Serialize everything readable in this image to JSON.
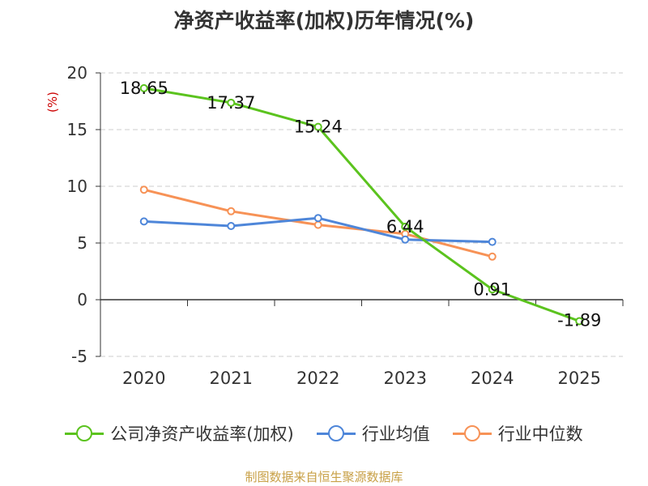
{
  "chart_data": {
    "type": "line",
    "title": "净资产收益率(加权)历年情况(%)",
    "ylabel": "(%)",
    "xlabel": "",
    "categories": [
      "2020",
      "2021",
      "2022",
      "2023",
      "2024",
      "2025"
    ],
    "ylim": [
      -5,
      20
    ],
    "yticks": [
      -5,
      0,
      5,
      10,
      15,
      20
    ],
    "grid": true,
    "legend_position": "bottom",
    "series": [
      {
        "name": "公司净资产收益率(加权)",
        "color": "#5bc31e",
        "values": [
          18.65,
          17.37,
          15.24,
          6.44,
          0.91,
          -1.89
        ],
        "labels": [
          "18.65",
          "17.37",
          "15.24",
          "6.44",
          "0.91",
          "-1.89"
        ]
      },
      {
        "name": "行业均值",
        "color": "#4e86d9",
        "values": [
          6.9,
          6.5,
          7.2,
          5.3,
          5.1,
          null
        ]
      },
      {
        "name": "行业中位数",
        "color": "#f79256",
        "values": [
          9.7,
          7.8,
          6.6,
          5.8,
          3.8,
          null
        ]
      }
    ]
  },
  "source": "制图数据来自恒生聚源数据库"
}
